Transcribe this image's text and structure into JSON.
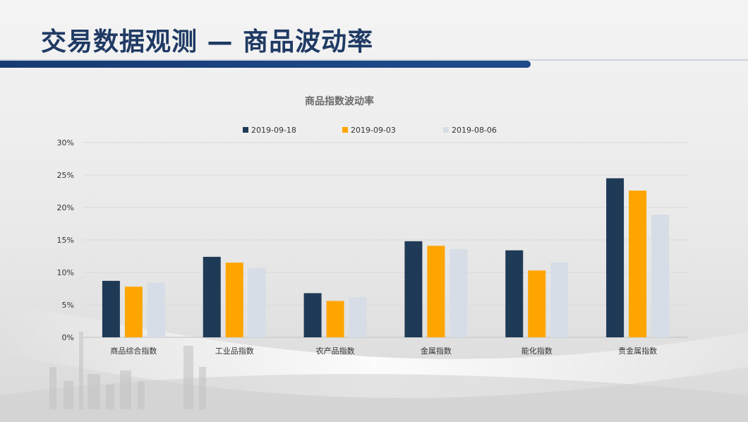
{
  "header": {
    "title": "交易数据观测 — 商品波动率"
  },
  "colors": {
    "series": [
      "#1f3a56",
      "#ffa500",
      "#d6dde6"
    ],
    "title": "#1f3a64",
    "bar": "#173a72"
  },
  "chart_data": {
    "type": "bar",
    "title": "商品指数波动率",
    "xlabel": "",
    "ylabel": "",
    "ylim": [
      0,
      30
    ],
    "yticks": [
      "0%",
      "5%",
      "10%",
      "15%",
      "20%",
      "25%",
      "30%"
    ],
    "ytick_values": [
      0,
      5,
      10,
      15,
      20,
      25,
      30
    ],
    "grid": true,
    "legend_position": "top",
    "categories": [
      "商品综合指数",
      "工业品指数",
      "农产品指数",
      "金属指数",
      "能化指数",
      "贵金属指数"
    ],
    "series": [
      {
        "name": "2019-09-18",
        "values": [
          8.7,
          12.4,
          6.8,
          14.8,
          13.4,
          24.5
        ]
      },
      {
        "name": "2019-09-03",
        "values": [
          7.8,
          11.5,
          5.6,
          14.1,
          10.3,
          22.6
        ]
      },
      {
        "name": "2019-08-06",
        "values": [
          8.4,
          10.7,
          6.2,
          13.6,
          11.5,
          18.9
        ]
      }
    ]
  }
}
